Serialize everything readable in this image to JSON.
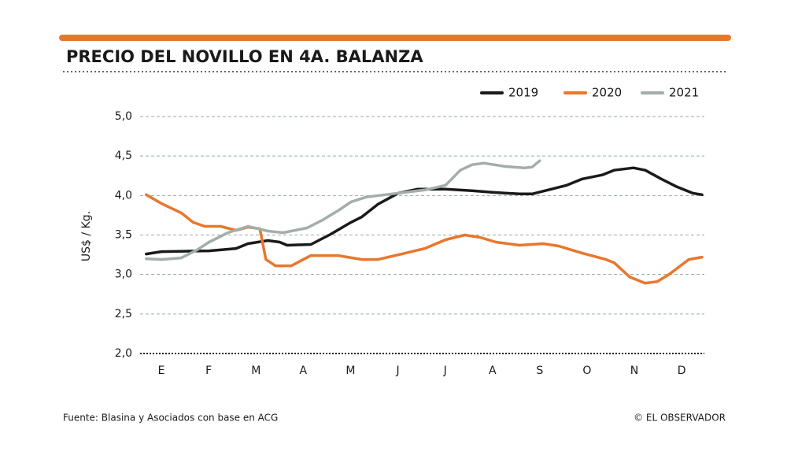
{
  "chart_data": {
    "type": "line",
    "title": "PRECIO DEL NOVILLO EN 4A. BALANZA",
    "ylabel": "US$ / Kg.",
    "source": "Fuente: Blasina y Asociados con base en ACG",
    "credit": "© EL OBSERVADOR",
    "xlim": [
      -0.45,
      11.48
    ],
    "xticks": [
      {
        "value": 0,
        "label": "E"
      },
      {
        "value": 1,
        "label": "F"
      },
      {
        "value": 2,
        "label": "M"
      },
      {
        "value": 3,
        "label": "A"
      },
      {
        "value": 4,
        "label": "M"
      },
      {
        "value": 5,
        "label": "J"
      },
      {
        "value": 6,
        "label": "J"
      },
      {
        "value": 7,
        "label": "A"
      },
      {
        "value": 8,
        "label": "S"
      },
      {
        "value": 9,
        "label": "O"
      },
      {
        "value": 10,
        "label": "N"
      },
      {
        "value": 11,
        "label": "D"
      }
    ],
    "ylim": [
      2.0,
      5.0
    ],
    "yticks": [
      {
        "value": 2.0,
        "label": "2,0"
      },
      {
        "value": 2.5,
        "label": "2,5"
      },
      {
        "value": 3.0,
        "label": "3,0"
      },
      {
        "value": 3.5,
        "label": "3,5"
      },
      {
        "value": 4.0,
        "label": "4,0"
      },
      {
        "value": 4.5,
        "label": "4,5"
      },
      {
        "value": 5.0,
        "label": "5,0"
      }
    ],
    "grid": true,
    "legend": "top-right",
    "series": [
      {
        "name": "2019",
        "color": "#1a1a1a",
        "x": [
          -0.32,
          0,
          1.01,
          1.58,
          1.83,
          2.25,
          2.5,
          2.66,
          3.16,
          3.58,
          4.01,
          4.24,
          4.58,
          5.01,
          5.41,
          6.01,
          6.57,
          7.0,
          7.57,
          7.84,
          8.24,
          8.57,
          8.9,
          9.32,
          9.57,
          9.98,
          10.23,
          10.57,
          10.9,
          11.23,
          11.43
        ],
        "values": [
          3.26,
          3.29,
          3.3,
          3.33,
          3.39,
          3.43,
          3.41,
          3.37,
          3.38,
          3.51,
          3.66,
          3.73,
          3.89,
          4.03,
          4.08,
          4.08,
          4.06,
          4.04,
          4.02,
          4.02,
          4.08,
          4.13,
          4.21,
          4.26,
          4.32,
          4.35,
          4.32,
          4.21,
          4.11,
          4.03,
          4.01
        ]
      },
      {
        "name": "2020",
        "color": "#e8772e",
        "x": [
          -0.32,
          0,
          0.42,
          0.67,
          0.92,
          1.25,
          1.58,
          1.83,
          2.08,
          2.21,
          2.41,
          2.75,
          3.0,
          3.16,
          3.74,
          4.24,
          4.58,
          5.01,
          5.57,
          6.01,
          6.41,
          6.74,
          7.07,
          7.57,
          8.07,
          8.4,
          8.9,
          9.4,
          9.57,
          9.9,
          10.23,
          10.48,
          10.73,
          11.15,
          11.43
        ],
        "values": [
          4.01,
          3.9,
          3.78,
          3.66,
          3.61,
          3.61,
          3.56,
          3.6,
          3.58,
          3.19,
          3.11,
          3.11,
          3.19,
          3.24,
          3.24,
          3.19,
          3.19,
          3.25,
          3.33,
          3.44,
          3.5,
          3.47,
          3.41,
          3.37,
          3.39,
          3.36,
          3.27,
          3.19,
          3.15,
          2.97,
          2.89,
          2.91,
          3.0,
          3.19,
          3.22
        ]
      },
      {
        "name": "2021",
        "color": "#a3aea9",
        "x": [
          -0.32,
          0,
          0.42,
          0.75,
          1.01,
          1.41,
          1.83,
          2.25,
          2.58,
          3.08,
          3.41,
          3.74,
          4.01,
          4.33,
          5.01,
          5.57,
          6.01,
          6.32,
          6.57,
          6.82,
          7.24,
          7.67,
          7.84,
          8.0
        ],
        "values": [
          3.2,
          3.19,
          3.21,
          3.31,
          3.41,
          3.53,
          3.61,
          3.55,
          3.53,
          3.59,
          3.69,
          3.81,
          3.92,
          3.98,
          4.03,
          4.07,
          4.13,
          4.32,
          4.39,
          4.41,
          4.37,
          4.35,
          4.36,
          4.44
        ]
      }
    ]
  }
}
